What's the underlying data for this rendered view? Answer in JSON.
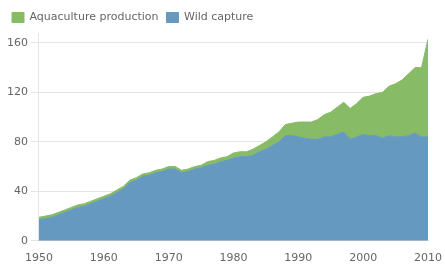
{
  "chart_data": {
    "type": "area",
    "x": [
      1950,
      1951,
      1952,
      1953,
      1954,
      1955,
      1956,
      1957,
      1958,
      1959,
      1960,
      1961,
      1962,
      1963,
      1964,
      1965,
      1966,
      1967,
      1968,
      1969,
      1970,
      1971,
      1972,
      1973,
      1974,
      1975,
      1976,
      1977,
      1978,
      1979,
      1980,
      1981,
      1982,
      1983,
      1984,
      1985,
      1986,
      1987,
      1988,
      1989,
      1990,
      1991,
      1992,
      1993,
      1994,
      1995,
      1996,
      1997,
      1998,
      1999,
      2000,
      2001,
      2002,
      2003,
      2004,
      2005,
      2006,
      2007,
      2008,
      2009,
      2010
    ],
    "series": [
      {
        "name": "Wild capture",
        "color": "#6699c0",
        "values": [
          17,
          18,
          19,
          21,
          23,
          25,
          27,
          28,
          30,
          32,
          34,
          36,
          39,
          42,
          47,
          49,
          52,
          53,
          55,
          56,
          58,
          58,
          55,
          56,
          58,
          59,
          61,
          62,
          64,
          65,
          67,
          68,
          68,
          69,
          72,
          74,
          77,
          80,
          85,
          85,
          84,
          83,
          82,
          82,
          84,
          84,
          86,
          88,
          82,
          84,
          86,
          85,
          85,
          83,
          85,
          84,
          84,
          85,
          87,
          84,
          84
        ]
      },
      {
        "name": "Aquaculture production",
        "color": "#88bb66",
        "values": [
          2,
          2,
          2,
          2,
          2,
          2,
          2,
          2,
          2,
          2,
          2,
          2,
          2,
          2,
          2,
          2,
          2,
          2,
          2,
          2,
          2,
          2,
          2,
          2,
          2,
          2,
          3,
          3,
          3,
          3,
          4,
          4,
          4,
          5,
          5,
          6,
          7,
          8,
          9,
          10,
          12,
          13,
          14,
          16,
          18,
          20,
          22,
          24,
          25,
          27,
          30,
          32,
          34,
          37,
          40,
          43,
          46,
          50,
          53,
          56,
          79
        ]
      }
    ],
    "stacked": true,
    "xlim": [
      1950,
      2010
    ],
    "xticks": [
      1950,
      1960,
      1970,
      1980,
      1990,
      2000,
      2010
    ],
    "ylim": [
      0,
      168
    ],
    "yticks": [
      0,
      40,
      80,
      120,
      160
    ],
    "grid": "y",
    "legend": "upper left"
  }
}
